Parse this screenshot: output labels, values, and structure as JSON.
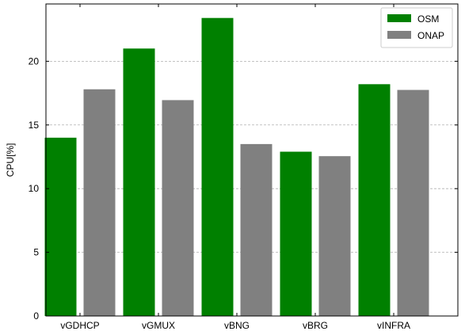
{
  "chart_data": {
    "type": "bar",
    "categories": [
      "vGDHCP",
      "vGMUX",
      "vBNG",
      "vBRG",
      "vINFRA"
    ],
    "series": [
      {
        "name": "OSM",
        "color": "#008000",
        "values": [
          14.0,
          21.0,
          23.4,
          12.9,
          18.2
        ]
      },
      {
        "name": "ONAP",
        "color": "#808080",
        "values": [
          17.8,
          16.95,
          13.5,
          12.55,
          17.75
        ]
      }
    ],
    "title": "",
    "xlabel": "",
    "ylabel": "CPU[%]",
    "ylim": [
      0,
      24.5
    ],
    "yticks": [
      0,
      5,
      10,
      15,
      20
    ],
    "grid": "horizontal-dashed",
    "legend_position": "top-right"
  }
}
